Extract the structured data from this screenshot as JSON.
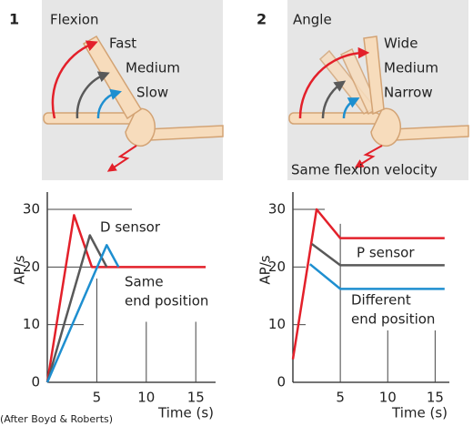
{
  "credit": "(After Boyd & Roberts)",
  "chart_data": [
    {
      "type": "line",
      "panel": "1",
      "illustration": [
        "Flexion",
        "Fast",
        "Medium",
        "Slow"
      ],
      "xlabel": "Time (s)",
      "ylabel": "AP/s",
      "xlim": [
        0,
        17
      ],
      "ylim": [
        0,
        33
      ],
      "xticks": [
        5,
        10,
        15
      ],
      "yticks": [
        0,
        10,
        20,
        30
      ],
      "annotations": [
        "D sensor",
        "Same",
        "end position"
      ],
      "series": [
        {
          "color": "#e3202a",
          "x": [
            0,
            2.7,
            4.5,
            16
          ],
          "values": [
            0,
            29,
            20,
            20
          ]
        },
        {
          "color": "#595959",
          "x": [
            0,
            4.3,
            6
          ],
          "values": [
            0,
            25.5,
            20
          ]
        },
        {
          "color": "#1e8fd0",
          "x": [
            0,
            6,
            7.2
          ],
          "values": [
            0,
            23.8,
            20
          ]
        }
      ]
    },
    {
      "type": "line",
      "panel": "2",
      "illustration": [
        "Angle",
        "Wide",
        "Medium",
        "Narrow",
        "Same flexion velocity"
      ],
      "xlabel": "Time (s)",
      "ylabel": "AP/s",
      "xlim": [
        0,
        16.5
      ],
      "ylim": [
        0,
        33
      ],
      "xticks": [
        5,
        10,
        15
      ],
      "yticks": [
        0,
        10,
        20,
        30
      ],
      "annotations": [
        "P sensor",
        "Different",
        "end position"
      ],
      "series": [
        {
          "color": "#e3202a",
          "x": [
            0,
            2.5,
            5,
            16
          ],
          "values": [
            4,
            30,
            25,
            25
          ]
        },
        {
          "color": "#595959",
          "x": [
            2,
            5,
            16
          ],
          "values": [
            24,
            20.3,
            20.3
          ]
        },
        {
          "color": "#1e8fd0",
          "x": [
            1.8,
            5,
            16
          ],
          "values": [
            20.5,
            16.2,
            16.2
          ]
        }
      ]
    }
  ]
}
